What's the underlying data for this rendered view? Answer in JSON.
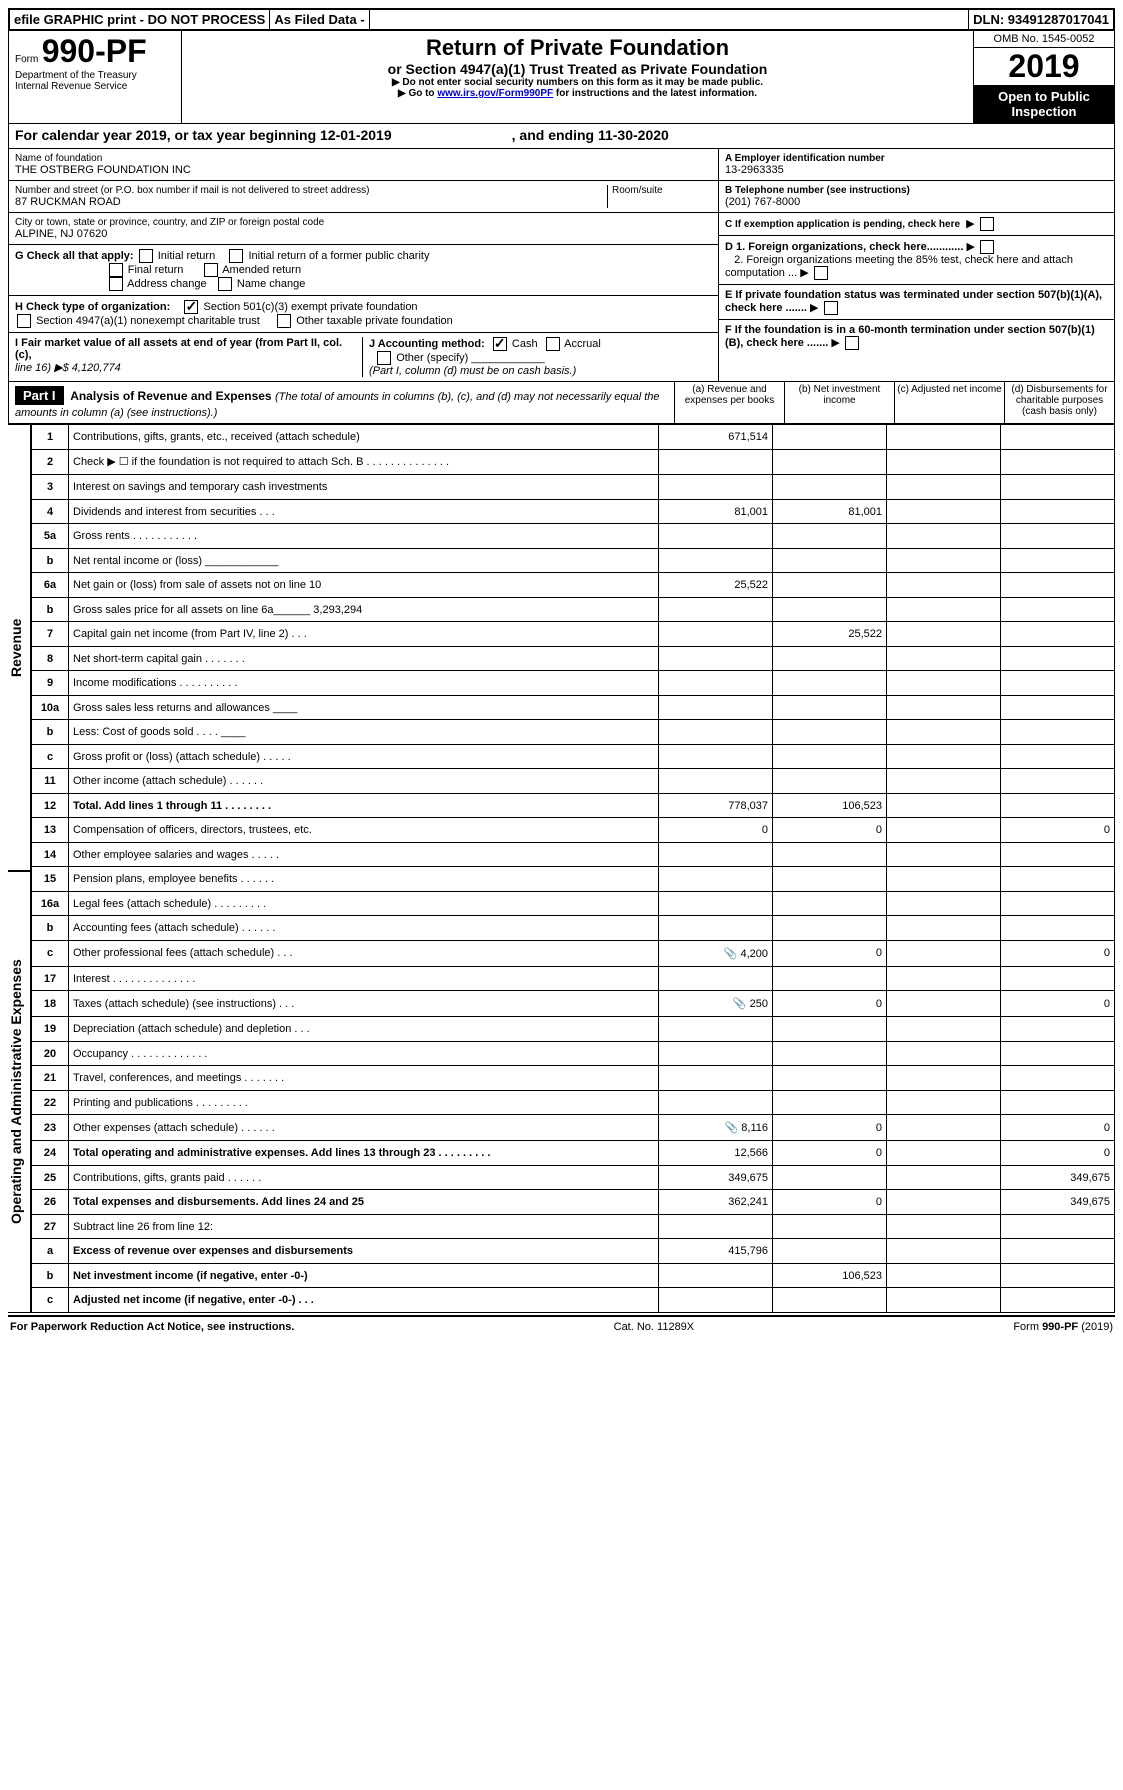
{
  "doc": {
    "efile_bar": {
      "left": "efile GRAPHIC print - DO NOT PROCESS",
      "mid": "As Filed Data -",
      "right": "DLN: 93491287017041"
    },
    "omb": "OMB No. 1545-0052",
    "form_prefix": "Form",
    "form_number": "990-PF",
    "dept": "Department of the Treasury",
    "irs": "Internal Revenue Service",
    "title": "Return of Private Foundation",
    "subtitle": "or Section 4947(a)(1) Trust Treated as Private Foundation",
    "warn1": "▶  Do not enter social security numbers on this form as it may be made public.",
    "warn2_pre": "▶  Go to ",
    "warn2_link": "www.irs.gov/Form990PF",
    "warn2_post": " for instructions and the latest information.",
    "year": "2019",
    "inspect": "Open to Public Inspection"
  },
  "period": {
    "label": "For calendar year 2019, or tax year beginning 12-01-2019",
    "ending_label": ", and ending 11-30-2020"
  },
  "id": {
    "name_label": "Name of foundation",
    "name": "THE OSTBERG FOUNDATION INC",
    "addr_label": "Number and street (or P.O. box number if mail is not delivered to street address)",
    "addr": "87 RUCKMAN ROAD",
    "room_label": "Room/suite",
    "city_label": "City or town, state or province, country, and ZIP or foreign postal code",
    "city": "ALPINE, NJ  07620",
    "ein_label": "A Employer identification number",
    "ein": "13-2963335",
    "tel_label": "B Telephone number (see instructions)",
    "tel": "(201) 767-8000",
    "c_label": "C If exemption application is pending, check here"
  },
  "g": {
    "label": "G Check all that apply:",
    "initial": "Initial return",
    "initial_former": "Initial return of a former public charity",
    "final": "Final return",
    "amended": "Amended return",
    "addrchg": "Address change",
    "namechg": "Name change"
  },
  "h": {
    "label": "H Check type of organization:",
    "sec501": "Section 501(c)(3) exempt private foundation",
    "sec4947": "Section 4947(a)(1) nonexempt charitable trust",
    "other_taxable": "Other taxable private foundation"
  },
  "i": {
    "label": "I Fair market value of all assets at end of year (from Part II, col. (c),",
    "line16": "line 16)  ▶$  4,120,774"
  },
  "j": {
    "label": "J Accounting method:",
    "cash": "Cash",
    "accrual": "Accrual",
    "other": "Other (specify)",
    "note": "(Part I, column (d) must be on cash basis.)"
  },
  "d": {
    "d1": "D 1. Foreign organizations, check here............",
    "d2": "2. Foreign organizations meeting the 85% test, check here and attach computation ...",
    "e": "E   If private foundation status was terminated under section 507(b)(1)(A), check here .......",
    "f": "F   If the foundation is in a 60-month termination under section 507(b)(1)(B), check here ......."
  },
  "part1": {
    "bar": "Part I",
    "title": "Analysis of Revenue and Expenses",
    "title_note": " (The total of amounts in columns (b), (c), and (d) may not necessarily equal the amounts in column (a) (see instructions).)",
    "col_a": "(a)   Revenue and expenses per books",
    "col_b": "(b)  Net investment income",
    "col_c": "(c)  Adjusted net income",
    "col_d": "(d)  Disbursements for charitable purposes (cash basis only)"
  },
  "side": {
    "revenue": "Revenue",
    "expenses": "Operating and Administrative Expenses"
  },
  "rows": [
    {
      "n": "1",
      "d": "Contributions, gifts, grants, etc., received (attach schedule)",
      "a": "671,514",
      "b": "",
      "c": "",
      "dv": ""
    },
    {
      "n": "2",
      "d": "Check ▶ ☐ if the foundation is not required to attach Sch. B   .  .  .  .  .  .  .  .  .  .  .  .  .  .",
      "a": "",
      "b": "",
      "c": "",
      "dv": ""
    },
    {
      "n": "3",
      "d": "Interest on savings and temporary cash investments",
      "a": "",
      "b": "",
      "c": "",
      "dv": ""
    },
    {
      "n": "4",
      "d": "Dividends and interest from securities    .   .   .",
      "a": "81,001",
      "b": "81,001",
      "c": "",
      "dv": ""
    },
    {
      "n": "5a",
      "d": "Gross rents    .   .   .   .   .   .   .   .   .   .   .",
      "a": "",
      "b": "",
      "c": "",
      "dv": ""
    },
    {
      "n": "b",
      "d": "Net rental income or (loss)  ____________",
      "a": "",
      "b": "",
      "c": "",
      "dv": ""
    },
    {
      "n": "6a",
      "d": "Net gain or (loss) from sale of assets not on line 10",
      "a": "25,522",
      "b": "",
      "c": "",
      "dv": ""
    },
    {
      "n": "b",
      "d": "Gross sales price for all assets on line 6a______ 3,293,294",
      "a": "",
      "b": "",
      "c": "",
      "dv": ""
    },
    {
      "n": "7",
      "d": "Capital gain net income (from Part IV, line 2)   .   .   .",
      "a": "",
      "b": "25,522",
      "c": "",
      "dv": ""
    },
    {
      "n": "8",
      "d": "Net short-term capital gain   .   .   .   .   .   .   .",
      "a": "",
      "b": "",
      "c": "",
      "dv": ""
    },
    {
      "n": "9",
      "d": "Income modifications  .   .   .   .   .   .   .   .   .   .",
      "a": "",
      "b": "",
      "c": "",
      "dv": ""
    },
    {
      "n": "10a",
      "d": "Gross sales less returns and allowances ____",
      "a": "",
      "b": "",
      "c": "",
      "dv": ""
    },
    {
      "n": "b",
      "d": "Less: Cost of goods sold   .   .   .   . ____",
      "a": "",
      "b": "",
      "c": "",
      "dv": ""
    },
    {
      "n": "c",
      "d": "Gross profit or (loss) (attach schedule)    .   .   .   .   .",
      "a": "",
      "b": "",
      "c": "",
      "dv": ""
    },
    {
      "n": "11",
      "d": "Other income (attach schedule)    .   .   .   .   .   .",
      "a": "",
      "b": "",
      "c": "",
      "dv": ""
    },
    {
      "n": "12",
      "d": "Total. Add lines 1 through 11   .   .   .   .   .   .   .   .",
      "bold": true,
      "a": "778,037",
      "b": "106,523",
      "c": "",
      "dv": ""
    },
    {
      "n": "13",
      "d": "Compensation of officers, directors, trustees, etc.",
      "a": "0",
      "b": "0",
      "c": "",
      "dv": "0"
    },
    {
      "n": "14",
      "d": "Other employee salaries and wages   .   .   .   .   .",
      "a": "",
      "b": "",
      "c": "",
      "dv": ""
    },
    {
      "n": "15",
      "d": "Pension plans, employee benefits  .   .   .   .   .   .",
      "a": "",
      "b": "",
      "c": "",
      "dv": ""
    },
    {
      "n": "16a",
      "d": "Legal fees (attach schedule) .   .   .   .   .   .   .   .   .",
      "a": "",
      "b": "",
      "c": "",
      "dv": ""
    },
    {
      "n": "b",
      "d": "Accounting fees (attach schedule)  .   .   .   .   .   .",
      "a": "",
      "b": "",
      "c": "",
      "dv": ""
    },
    {
      "n": "c",
      "d": "Other professional fees (attach schedule)   .   .   .",
      "icon": true,
      "a": "4,200",
      "b": "0",
      "c": "",
      "dv": "0"
    },
    {
      "n": "17",
      "d": "Interest  .   .   .   .   .   .   .   .   .   .   .   .   .   .",
      "a": "",
      "b": "",
      "c": "",
      "dv": ""
    },
    {
      "n": "18",
      "d": "Taxes (attach schedule) (see instructions)   .   .   .",
      "icon": true,
      "a": "250",
      "b": "0",
      "c": "",
      "dv": "0"
    },
    {
      "n": "19",
      "d": "Depreciation (attach schedule) and depletion   .   .   .",
      "a": "",
      "b": "",
      "c": "",
      "dv": ""
    },
    {
      "n": "20",
      "d": "Occupancy  .   .   .   .   .   .   .   .   .   .   .   .   .",
      "a": "",
      "b": "",
      "c": "",
      "dv": ""
    },
    {
      "n": "21",
      "d": "Travel, conferences, and meetings .   .   .   .   .   .   .",
      "a": "",
      "b": "",
      "c": "",
      "dv": ""
    },
    {
      "n": "22",
      "d": "Printing and publications  .   .   .   .   .   .   .   .   .",
      "a": "",
      "b": "",
      "c": "",
      "dv": ""
    },
    {
      "n": "23",
      "d": "Other expenses (attach schedule)  .   .   .   .   .   .",
      "icon": true,
      "a": "8,116",
      "b": "0",
      "c": "",
      "dv": "0"
    },
    {
      "n": "24",
      "d": "Total operating and administrative expenses. Add lines 13 through 23   .   .   .   .   .   .   .   .   .",
      "bold": true,
      "a": "12,566",
      "b": "0",
      "c": "",
      "dv": "0"
    },
    {
      "n": "25",
      "d": "Contributions, gifts, grants paid    .   .   .   .   .   .",
      "a": "349,675",
      "b": "",
      "c": "",
      "dv": "349,675"
    },
    {
      "n": "26",
      "d": "Total expenses and disbursements. Add lines 24 and 25",
      "bold": true,
      "a": "362,241",
      "b": "0",
      "c": "",
      "dv": "349,675"
    },
    {
      "n": "27",
      "d": "Subtract line 26 from line 12:",
      "a": "",
      "b": "",
      "c": "",
      "dv": ""
    },
    {
      "n": "a",
      "d": "Excess of revenue over expenses and disbursements",
      "bold": true,
      "a": "415,796",
      "b": "",
      "c": "",
      "dv": ""
    },
    {
      "n": "b",
      "d": "Net investment income (if negative, enter -0-)",
      "bold": true,
      "a": "",
      "b": "106,523",
      "c": "",
      "dv": ""
    },
    {
      "n": "c",
      "d": "Adjusted net income (if negative, enter -0-)  .   .   .",
      "bold": true,
      "a": "",
      "b": "",
      "c": "",
      "dv": ""
    }
  ],
  "footer": {
    "left": "For Paperwork Reduction Act Notice, see instructions.",
    "mid": "Cat. No. 11289X",
    "right": "Form 990-PF (2019)"
  }
}
